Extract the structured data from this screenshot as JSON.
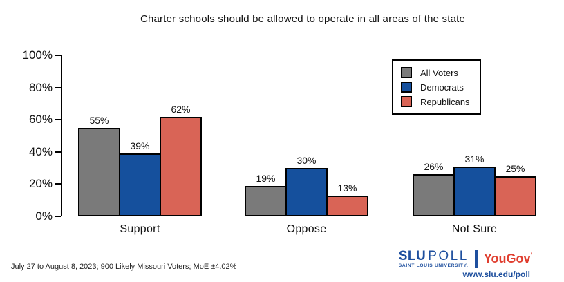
{
  "chart_data": {
    "type": "bar",
    "title": "Charter schools should be allowed to operate in all areas of the state",
    "categories": [
      "Support",
      "Oppose",
      "Not Sure"
    ],
    "series": [
      {
        "name": "All Voters",
        "color": "#7A7A7A",
        "values": [
          55,
          19,
          26
        ]
      },
      {
        "name": "Democrats",
        "color": "#15509D",
        "values": [
          39,
          30,
          31
        ]
      },
      {
        "name": "Republicans",
        "color": "#D96456",
        "values": [
          62,
          13,
          25
        ]
      }
    ],
    "value_suffix": "%",
    "xlabel": "",
    "ylabel": "",
    "ylim": [
      0,
      100
    ],
    "yticks": [
      "0%",
      "20%",
      "40%",
      "60%",
      "80%",
      "100%"
    ],
    "grid": false,
    "legend_position": "top-right",
    "bar_border_color": "#000000"
  },
  "footnote": "July 27 to August 8, 2023; 900 Likely Missouri Voters; MoE ±4.02%",
  "branding": {
    "slu": "SLU",
    "poll": "POLL",
    "slu_subtitle": "SAINT LOUIS UNIVERSITY.",
    "yougov": "YouGov",
    "yougov_mark": "’",
    "url": "www.slu.edu/poll",
    "slu_blue": "#1E4F9E",
    "yougov_red": "#E03E2F"
  }
}
